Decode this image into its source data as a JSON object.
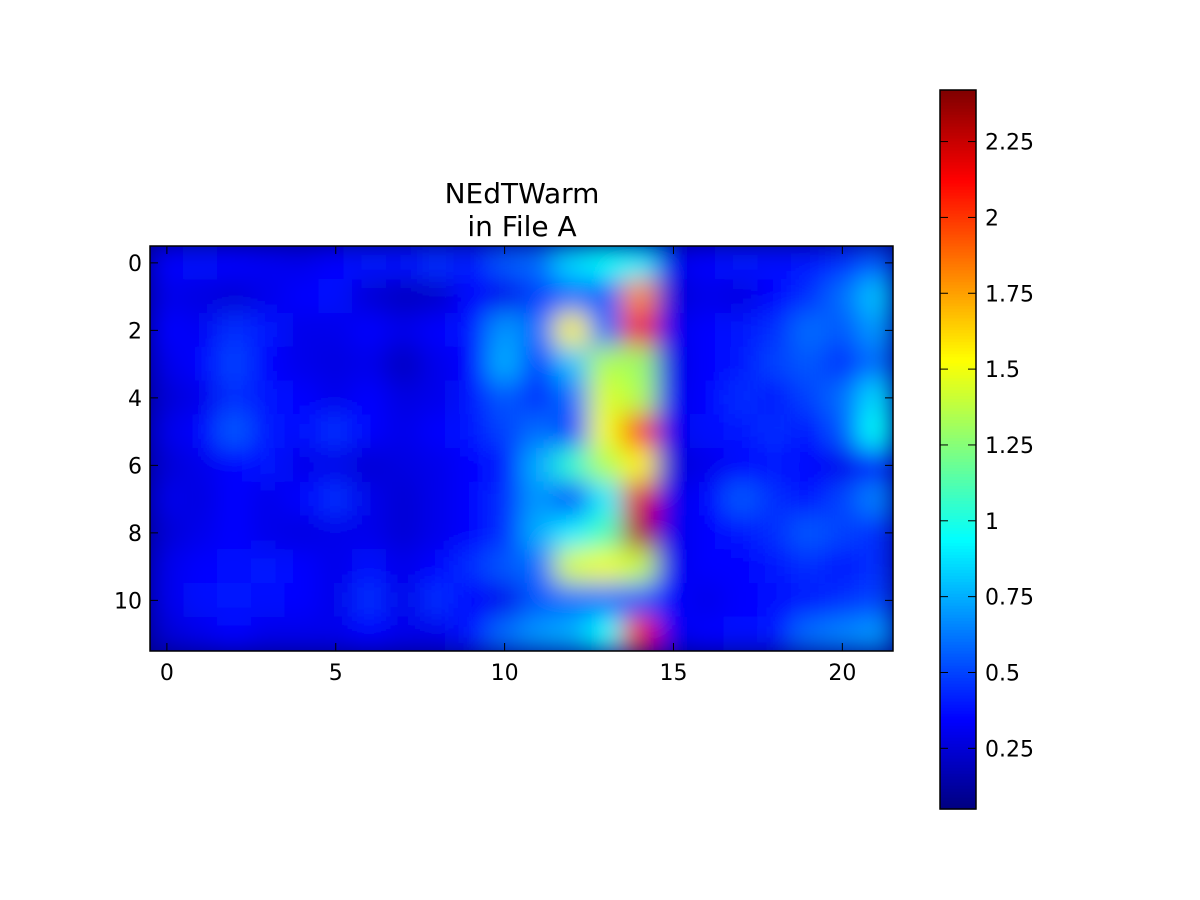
{
  "chart_data": {
    "type": "heatmap",
    "title_lines": [
      "NEdTWarm",
      "in File A"
    ],
    "xlabel": "",
    "ylabel": "",
    "x_range": [
      -0.5,
      21.5
    ],
    "y_range": [
      -0.5,
      11.5
    ],
    "x_ticks": [
      0,
      5,
      10,
      15,
      20
    ],
    "y_ticks": [
      0,
      2,
      4,
      6,
      8,
      10
    ],
    "colorbar": {
      "colormap": "jet",
      "range": [
        0.05,
        2.42
      ],
      "ticks": [
        0.25,
        0.5,
        0.75,
        1,
        1.25,
        1.5,
        1.75,
        2,
        2.25
      ],
      "tick_labels": [
        "0.25",
        "0.5",
        "0.75",
        "1",
        "1.25",
        "1.5",
        "1.75",
        "2",
        "2.25"
      ],
      "position": "right"
    },
    "interpolation": "bilinear",
    "grid": false,
    "values": [
      [
        0.35,
        0.38,
        0.36,
        0.32,
        0.3,
        0.35,
        0.4,
        0.38,
        0.45,
        0.4,
        0.55,
        0.6,
        0.85,
        0.95,
        0.9,
        0.3,
        0.35,
        0.4,
        0.38,
        0.4,
        0.45,
        0.55
      ],
      [
        0.3,
        0.28,
        0.25,
        0.3,
        0.35,
        0.38,
        0.25,
        0.2,
        0.22,
        0.35,
        0.3,
        0.5,
        0.6,
        0.55,
        1.8,
        0.25,
        0.3,
        0.28,
        0.35,
        0.45,
        0.6,
        0.8
      ],
      [
        0.35,
        0.32,
        0.45,
        0.4,
        0.3,
        0.3,
        0.35,
        0.3,
        0.35,
        0.4,
        0.7,
        0.6,
        1.55,
        0.6,
        2.15,
        0.3,
        0.35,
        0.4,
        0.45,
        0.6,
        0.55,
        0.7
      ],
      [
        0.3,
        0.35,
        0.5,
        0.35,
        0.3,
        0.28,
        0.3,
        0.2,
        0.3,
        0.35,
        0.75,
        0.5,
        0.8,
        1.35,
        1.3,
        0.28,
        0.35,
        0.4,
        0.5,
        0.55,
        0.45,
        0.6
      ],
      [
        0.25,
        0.3,
        0.45,
        0.4,
        0.35,
        0.3,
        0.35,
        0.28,
        0.3,
        0.4,
        0.55,
        0.45,
        0.6,
        1.45,
        1.35,
        0.3,
        0.35,
        0.45,
        0.4,
        0.5,
        0.6,
        0.85
      ],
      [
        0.3,
        0.35,
        0.55,
        0.4,
        0.38,
        0.45,
        0.35,
        0.3,
        0.35,
        0.4,
        0.5,
        0.6,
        0.5,
        1.5,
        2.05,
        0.3,
        0.38,
        0.4,
        0.45,
        0.4,
        0.55,
        0.95
      ],
      [
        0.25,
        0.3,
        0.35,
        0.4,
        0.3,
        0.3,
        0.25,
        0.28,
        0.3,
        0.35,
        0.4,
        0.75,
        1.05,
        1.35,
        1.55,
        0.25,
        0.3,
        0.35,
        0.4,
        0.35,
        0.3,
        0.4
      ],
      [
        0.3,
        0.28,
        0.35,
        0.3,
        0.35,
        0.45,
        0.3,
        0.25,
        0.3,
        0.35,
        0.45,
        0.7,
        0.5,
        0.9,
        2.2,
        0.3,
        0.35,
        0.55,
        0.45,
        0.4,
        0.5,
        0.65
      ],
      [
        0.25,
        0.3,
        0.35,
        0.3,
        0.28,
        0.3,
        0.3,
        0.25,
        0.3,
        0.35,
        0.45,
        0.75,
        0.9,
        1.1,
        2.3,
        0.3,
        0.35,
        0.4,
        0.45,
        0.55,
        0.5,
        0.45
      ],
      [
        0.3,
        0.35,
        0.38,
        0.4,
        0.35,
        0.3,
        0.38,
        0.3,
        0.35,
        0.45,
        0.55,
        0.6,
        1.45,
        1.5,
        1.4,
        0.3,
        0.35,
        0.35,
        0.4,
        0.45,
        0.4,
        0.45
      ],
      [
        0.3,
        0.38,
        0.4,
        0.38,
        0.35,
        0.3,
        0.45,
        0.3,
        0.45,
        0.35,
        0.3,
        0.55,
        0.6,
        0.6,
        0.55,
        0.35,
        0.3,
        0.35,
        0.38,
        0.4,
        0.45,
        0.5
      ],
      [
        0.25,
        0.3,
        0.35,
        0.3,
        0.3,
        0.3,
        0.35,
        0.3,
        0.3,
        0.4,
        0.6,
        0.7,
        0.75,
        0.95,
        2.15,
        0.3,
        0.35,
        0.38,
        0.4,
        0.6,
        0.65,
        0.7
      ]
    ]
  }
}
